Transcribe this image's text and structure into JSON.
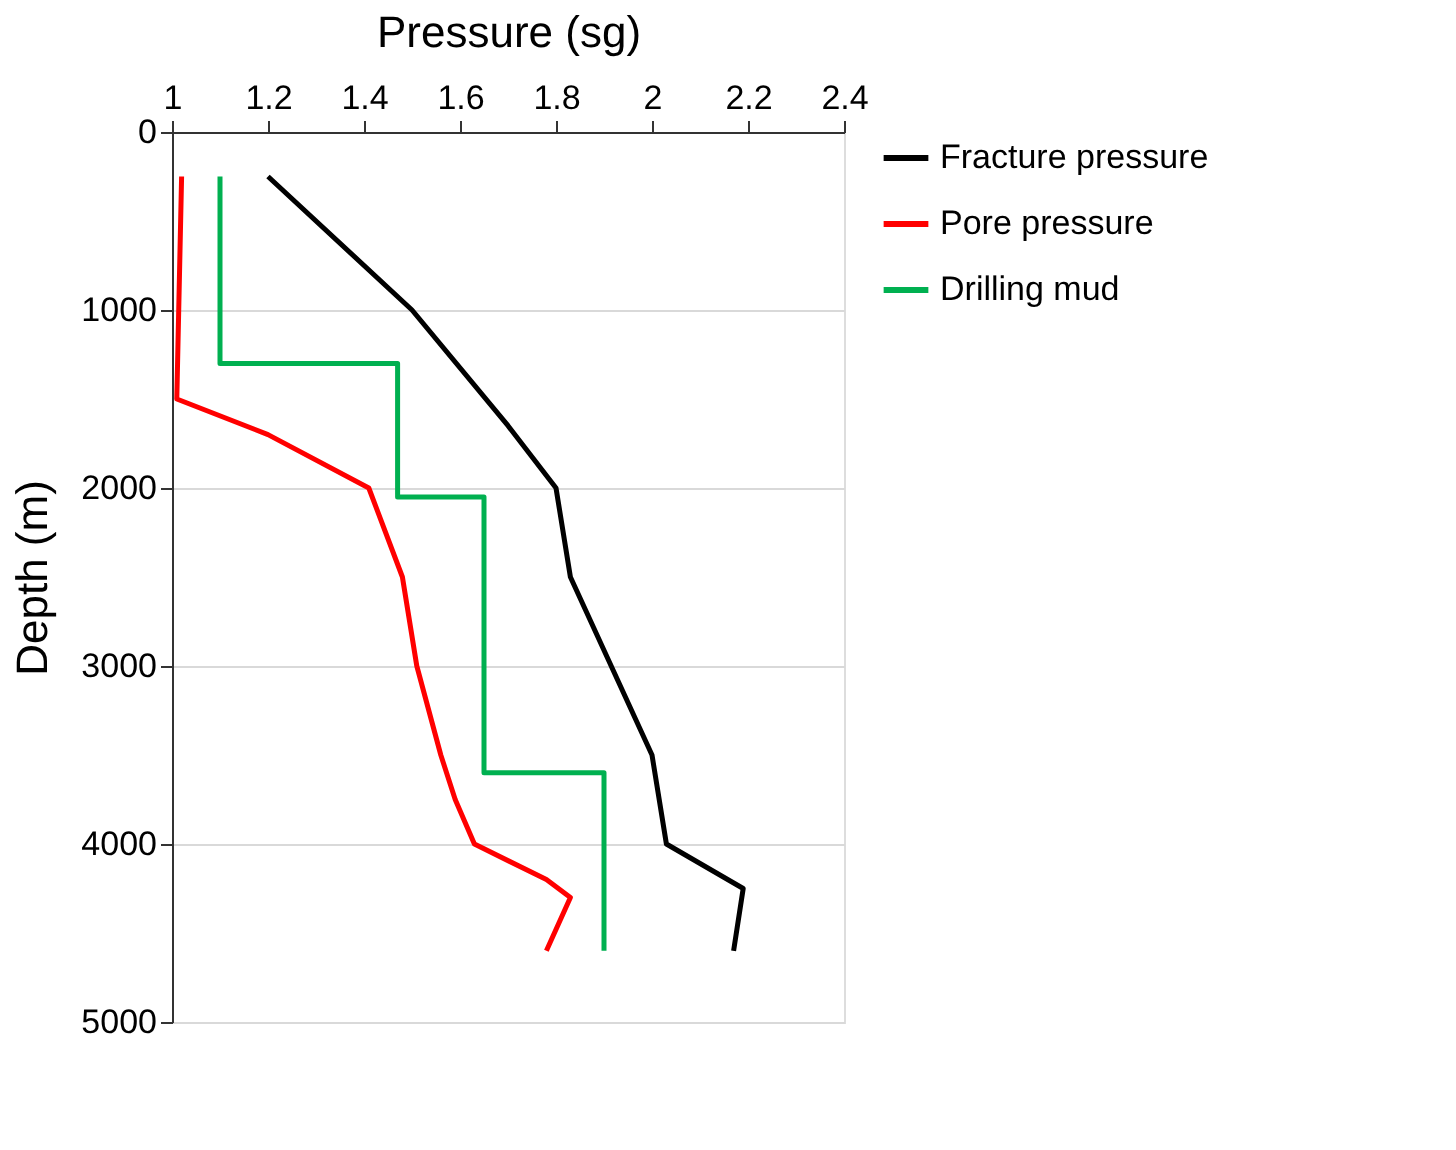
{
  "chart_data": {
    "type": "line",
    "xlabel": "Pressure (sg)",
    "ylabel": "Depth (m)",
    "xlim": [
      1,
      2.4
    ],
    "xticks": [
      1,
      1.2,
      1.4,
      1.6,
      1.8,
      2,
      2.2,
      2.4
    ],
    "ylim": [
      5000,
      0
    ],
    "yticks": [
      0,
      1000,
      2000,
      3000,
      4000,
      5000
    ],
    "grid": "y",
    "legend": "right",
    "marker": "none",
    "line_style": "solid",
    "series": [
      {
        "name": "Fracture pressure",
        "color": "#000000",
        "x": [
          1.2,
          1.5,
          1.7,
          1.8,
          1.83,
          2.0,
          2.03,
          2.19,
          2.17
        ],
        "values": [
          250,
          1000,
          1650,
          2000,
          2500,
          3500,
          4000,
          4250,
          4600
        ]
      },
      {
        "name": "Pore pressure",
        "color": "#ff0000",
        "x": [
          1.02,
          1.01,
          1.2,
          1.41,
          1.48,
          1.51,
          1.56,
          1.59,
          1.63,
          1.78,
          1.83,
          1.78
        ],
        "values": [
          250,
          1500,
          1700,
          2000,
          2500,
          3000,
          3500,
          3750,
          4000,
          4200,
          4300,
          4600
        ]
      },
      {
        "name": "Drilling mud",
        "color": "#00b050",
        "x": [
          1.1,
          1.1,
          1.47,
          1.47,
          1.65,
          1.65,
          1.9,
          1.9
        ],
        "values": [
          250,
          1300,
          1300,
          2050,
          2050,
          3600,
          3600,
          4600
        ]
      }
    ]
  }
}
